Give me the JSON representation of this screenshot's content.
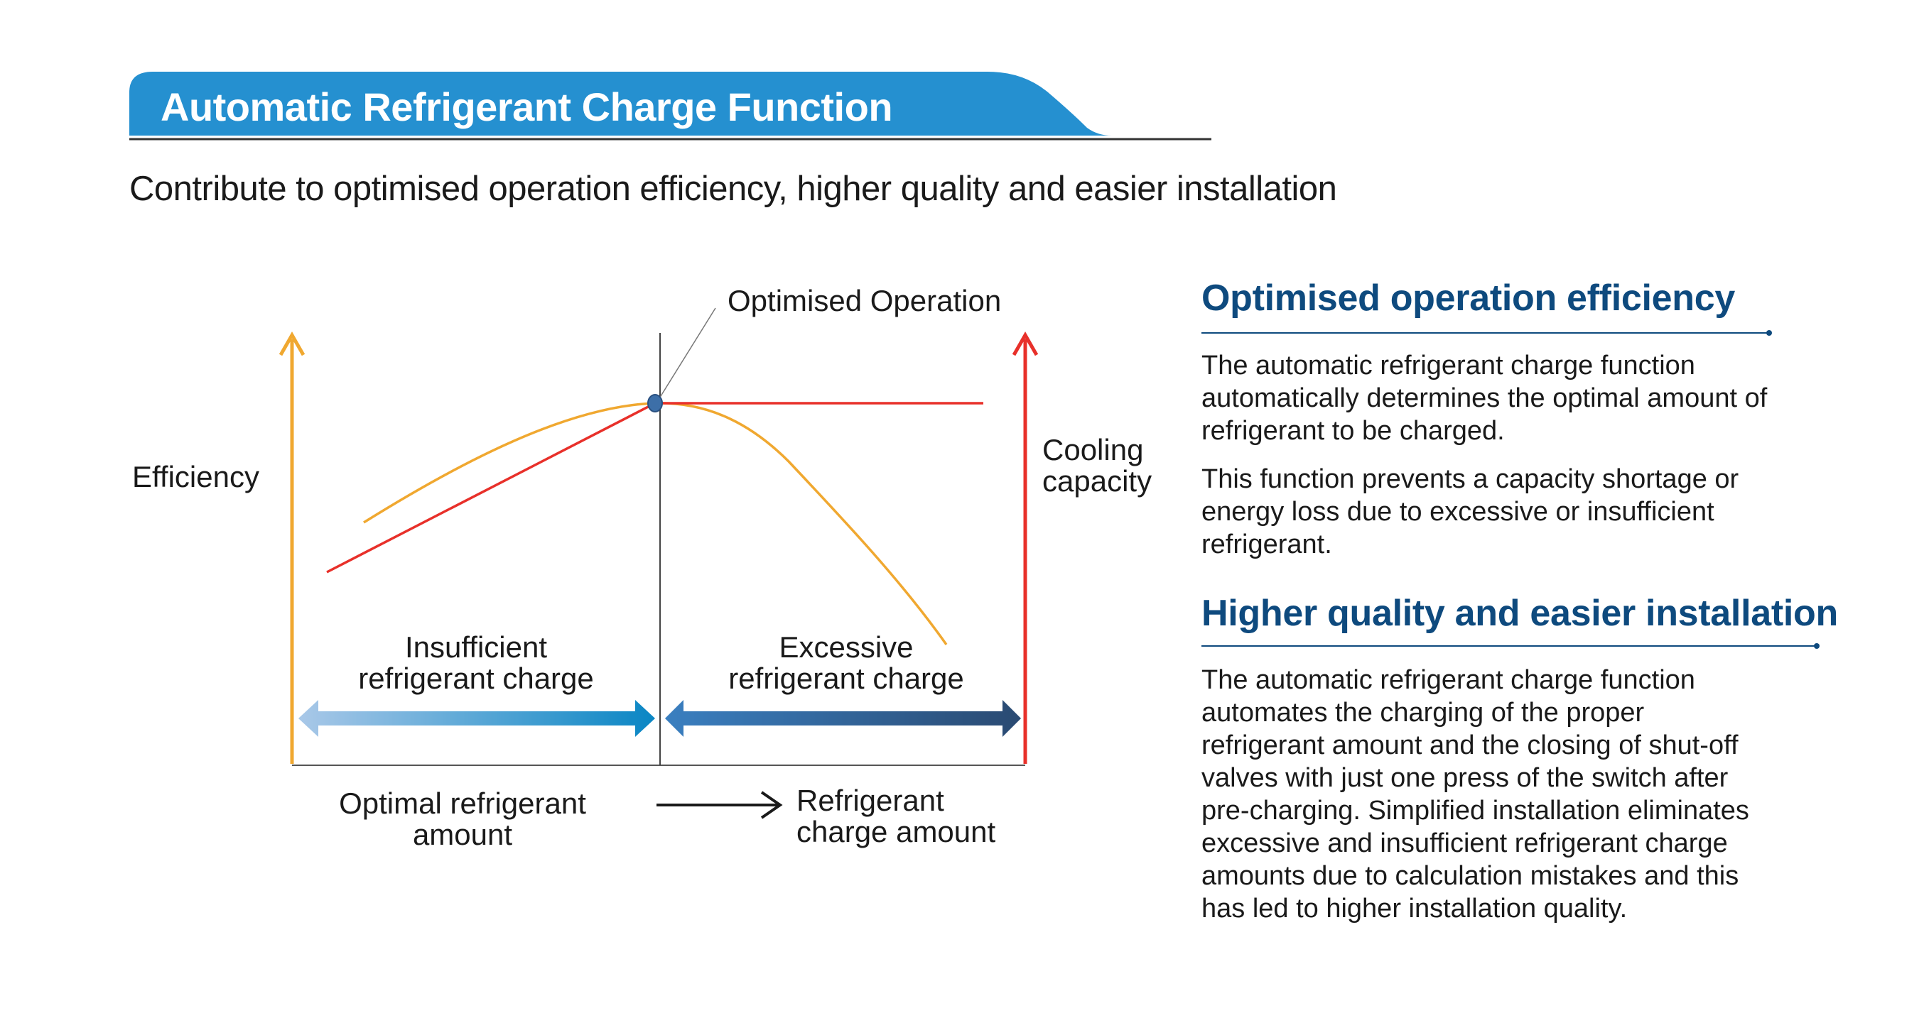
{
  "header": {
    "title": "Automatic Refrigerant Charge Function",
    "subtitle": "Contribute to optimised operation efficiency, higher quality and easier installation"
  },
  "diagram": {
    "peak_label": "Optimised Operation",
    "left_axis_label": "Efficiency",
    "right_axis_label": [
      "Cooling",
      "capacity"
    ],
    "insufficient_label": [
      "Insufficient",
      "refrigerant charge"
    ],
    "excessive_label": [
      "Excessive",
      "refrigerant charge"
    ],
    "optimal_label": [
      "Optimal refrigerant",
      "amount"
    ],
    "x_axis_label": [
      "Refrigerant",
      "charge amount"
    ],
    "colors": {
      "efficiency": "#f0a830",
      "capacity": "#e8302a",
      "banner": "#2590d0",
      "heading": "#0e4a7e"
    }
  },
  "sections": [
    {
      "heading": "Optimised operation efficiency",
      "paragraphs": [
        [
          "The automatic refrigerant charge function",
          "automatically determines the optimal amount of",
          "refrigerant to be charged."
        ],
        [
          "This function prevents a capacity shortage or",
          "energy loss due to excessive or insufficient",
          "refrigerant."
        ]
      ]
    },
    {
      "heading": "Higher quality and easier installation",
      "paragraphs": [
        [
          "The automatic refrigerant charge function",
          "automates the charging of the proper",
          "refrigerant amount and the closing of shut-off",
          "valves with just one press of the switch after",
          "pre-charging. Simplified installation eliminates",
          "excessive and insufficient refrigerant charge",
          "amounts due to calculation mistakes and this",
          "has led to higher installation quality."
        ]
      ]
    }
  ]
}
